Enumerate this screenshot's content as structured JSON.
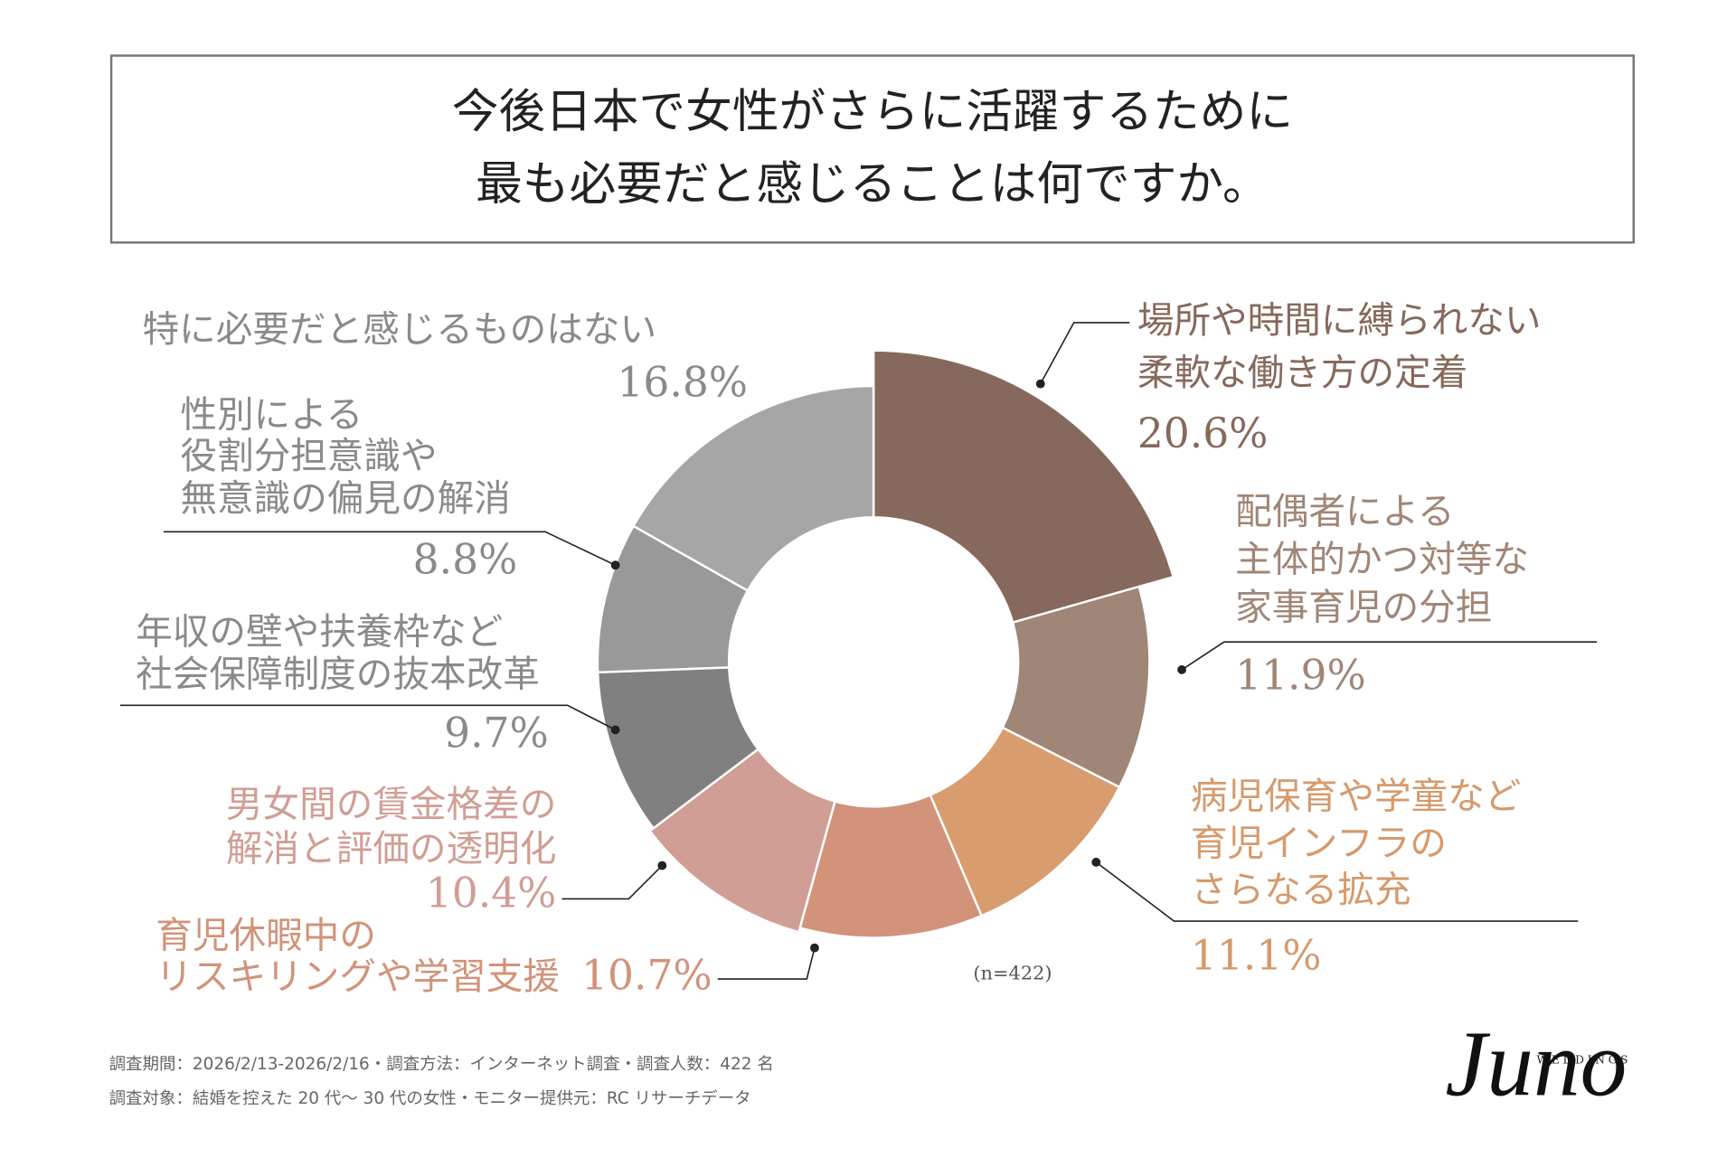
{
  "chart_data": {
    "type": "donut",
    "title": [
      "今後日本で女性がさらに活躍するために",
      "最も必要だと感じることは何ですか。"
    ],
    "categories": [
      [
        "場所や時間に縛られない",
        "柔軟な働き方の定着"
      ],
      [
        "配偶者による",
        "主体的かつ対等な",
        "家事育児の分担"
      ],
      [
        "病児保育や学童など",
        "育児インフラの",
        "さらなる拡充"
      ],
      [
        "育児休暇中の",
        "リスキリングや学習支援"
      ],
      [
        "男女間の賃金格差の",
        "解消と評価の透明化"
      ],
      [
        "年収の壁や扶養枠など",
        "社会保障制度の抜本改革"
      ],
      [
        "性別による",
        "役割分担意識や",
        "無意識の偏見の解消"
      ],
      [
        "特に必要だと感じるものはない"
      ]
    ],
    "values": [
      20.6,
      11.9,
      11.1,
      10.7,
      10.4,
      9.7,
      8.8,
      16.8
    ],
    "value_labels": [
      "20.6%",
      "11.9%",
      "11.1%",
      "10.7%",
      "10.4%",
      "9.7%",
      "8.8%",
      "16.8%"
    ],
    "colors": [
      "#86695c",
      "#a08676",
      "#d99c6e",
      "#d2937a",
      "#d09e94",
      "#808080",
      "#999999",
      "#a6a6a6"
    ],
    "label_colors": [
      "#86695c",
      "#a08676",
      "#d59a6c",
      "#d2937a",
      "#d09e94",
      "#8a8a8a",
      "#8a8a8a",
      "#8a8a8a"
    ],
    "sample_note": "(n=422)",
    "notes": [
      "調査期間：2026/2/13-2026/2/16・調査方法：インターネット調査・調査人数：422 名",
      "調査対象：結婚を控えた 20 代～ 30 代の女性・モニター提供元：RC リサーチデータ"
    ],
    "logo": {
      "name": "Juno",
      "sub": "WEDDINGS"
    }
  }
}
